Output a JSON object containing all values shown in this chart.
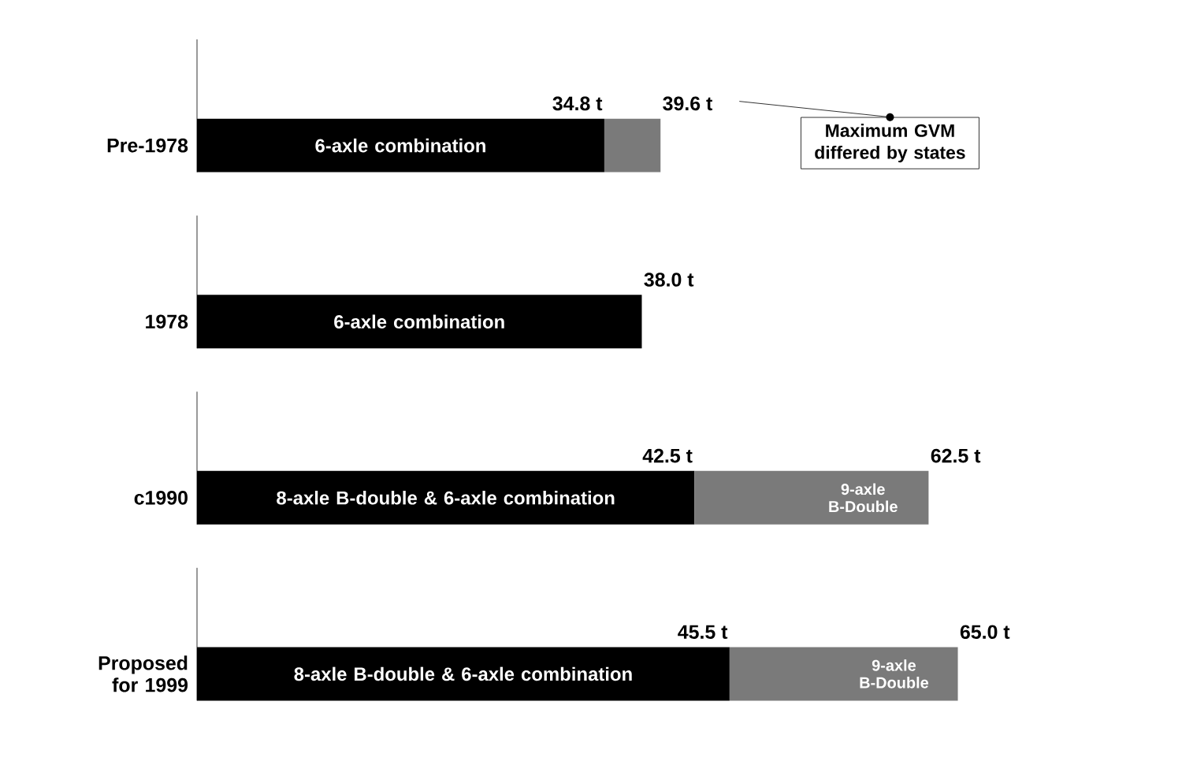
{
  "chart_data": {
    "type": "bar",
    "orientation": "horizontal",
    "stacked": true,
    "tick_labels": "y",
    "categories": [
      "Pre-1978",
      "1978",
      "c1990",
      "Proposed for 1999"
    ],
    "series": [
      {
        "color": "#000000",
        "values": [
          34.8,
          38.0,
          42.5,
          45.5
        ],
        "value_labels": [
          "34.8 t",
          null,
          "42.5 t",
          "45.5 t"
        ]
      },
      {
        "color": "#7a7a7a",
        "values": [
          4.8,
          null,
          20.0,
          19.5
        ]
      }
    ],
    "totals": [
      "39.6 t",
      "38.0 t",
      "62.5 t",
      "65.0 t"
    ],
    "annotations": [
      "6-axle combination",
      "6-axle combination",
      "8-axle B-double & 6-axle combination",
      "9-axle B-Double",
      "8-axle B-double & 6-axle combination",
      "9-axle B-Double",
      "Maximum GVM differed by states"
    ]
  }
}
